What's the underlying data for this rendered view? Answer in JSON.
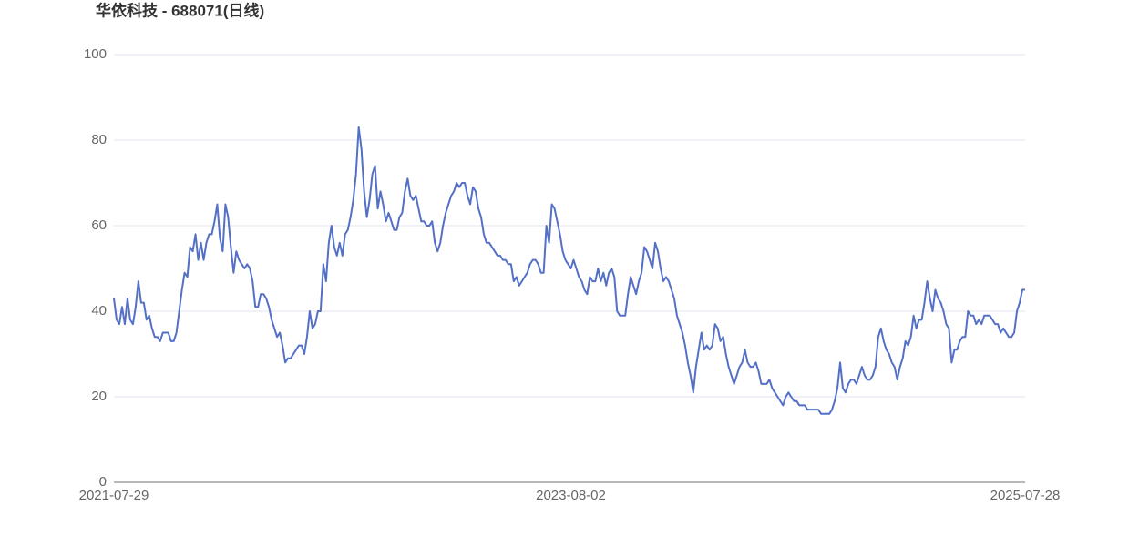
{
  "chart_data": {
    "type": "line",
    "title": "华依科技 - 688071(日线)",
    "categories": [
      "2021-07-29",
      null,
      null,
      null,
      null,
      null,
      null,
      null,
      null,
      null,
      null,
      null,
      null,
      null,
      null,
      null,
      null,
      null,
      null,
      null,
      null,
      null,
      null,
      null,
      null,
      null,
      null,
      null,
      null,
      null,
      null,
      null,
      null,
      null,
      null,
      null,
      null,
      null,
      null,
      null,
      null,
      null,
      null,
      null,
      null,
      null,
      null,
      null,
      null,
      null,
      null,
      null,
      null,
      null,
      null,
      null,
      null,
      null,
      null,
      null,
      null,
      null,
      null,
      null,
      null,
      null,
      null,
      null,
      null,
      null,
      null,
      null,
      null,
      null,
      null,
      null,
      null,
      null,
      null,
      null,
      null,
      null,
      null,
      null,
      null,
      null,
      null,
      null,
      null,
      null,
      null,
      null,
      null,
      null,
      null,
      null,
      null,
      null,
      null,
      null,
      null,
      null,
      null,
      null,
      null,
      null,
      null,
      null,
      null,
      null,
      null,
      null,
      null,
      null,
      null,
      null,
      null,
      null,
      null,
      null,
      null,
      null,
      null,
      null,
      null,
      null,
      null,
      null,
      null,
      null,
      null,
      null,
      null,
      null,
      null,
      null,
      null,
      null,
      null,
      null,
      null,
      null,
      null,
      null,
      null,
      null,
      null,
      null,
      null,
      null,
      null,
      null,
      null,
      null,
      null,
      null,
      null,
      null,
      null,
      null,
      null,
      null,
      null,
      null,
      null,
      null,
      null,
      null,
      "2023-08-02",
      null,
      null,
      null,
      null,
      null,
      null,
      null,
      null,
      null,
      null,
      null,
      null,
      null,
      null,
      null,
      null,
      null,
      null,
      null,
      null,
      null,
      null,
      null,
      null,
      null,
      null,
      null,
      null,
      null,
      null,
      null,
      null,
      null,
      null,
      null,
      null,
      null,
      null,
      null,
      null,
      null,
      null,
      null,
      null,
      null,
      null,
      null,
      null,
      null,
      null,
      null,
      null,
      null,
      null,
      null,
      null,
      null,
      null,
      null,
      null,
      null,
      null,
      null,
      null,
      null,
      null,
      null,
      null,
      null,
      null,
      null,
      null,
      null,
      null,
      null,
      null,
      null,
      null,
      null,
      null,
      null,
      null,
      null,
      null,
      null,
      null,
      null,
      null,
      null,
      null,
      null,
      null,
      null,
      null,
      null,
      null,
      null,
      null,
      null,
      null,
      null,
      null,
      null,
      null,
      null,
      null,
      null,
      null,
      null,
      null,
      null,
      null,
      null,
      null,
      null,
      null,
      null,
      null,
      null,
      null,
      null,
      null,
      null,
      null,
      null,
      null,
      null,
      null,
      null,
      null,
      null,
      null,
      null,
      null,
      null,
      null,
      null,
      null,
      null,
      null,
      null,
      null,
      null,
      null,
      null,
      null,
      null,
      null,
      null,
      null,
      null,
      null,
      null,
      null,
      null,
      null,
      null,
      null,
      null,
      null,
      null,
      null,
      null,
      null,
      null,
      null,
      "2025-07-28"
    ],
    "values": [
      43,
      38,
      37,
      41,
      37,
      43,
      38,
      37,
      41,
      47,
      42,
      42,
      38,
      39,
      36,
      34,
      34,
      33,
      35,
      35,
      35,
      33,
      33,
      35,
      40,
      45,
      49,
      48,
      55,
      54,
      58,
      52,
      56,
      52,
      56,
      58,
      58,
      61,
      65,
      57,
      54,
      65,
      62,
      55,
      49,
      54,
      52,
      51,
      50,
      51,
      50,
      47,
      41,
      41,
      44,
      44,
      43,
      41,
      38,
      36,
      34,
      35,
      32,
      28,
      29,
      29,
      30,
      31,
      32,
      32,
      30,
      34,
      40,
      36,
      37,
      40,
      40,
      51,
      47,
      56,
      60,
      55,
      53,
      56,
      53,
      58,
      59,
      62,
      66,
      72,
      83,
      78,
      68,
      62,
      66,
      72,
      74,
      64,
      68,
      65,
      61,
      63,
      61,
      59,
      59,
      62,
      63,
      68,
      71,
      67,
      66,
      67,
      64,
      61,
      61,
      60,
      60,
      61,
      56,
      54,
      56,
      60,
      63,
      65,
      67,
      68,
      70,
      69,
      70,
      70,
      67,
      65,
      69,
      68,
      64,
      62,
      58,
      56,
      56,
      55,
      54,
      53,
      53,
      52,
      52,
      51,
      51,
      47,
      48,
      46,
      47,
      48,
      49,
      51,
      52,
      52,
      51,
      49,
      49,
      60,
      56,
      65,
      64,
      61,
      58,
      54,
      52,
      51,
      50,
      52,
      50,
      48,
      47,
      45,
      44,
      48,
      47,
      47,
      50,
      47,
      49,
      46,
      49,
      50,
      48,
      40,
      39,
      39,
      39,
      44,
      48,
      46,
      44,
      47,
      49,
      55,
      54,
      52,
      50,
      56,
      54,
      50,
      47,
      48,
      47,
      45,
      43,
      39,
      37,
      35,
      32,
      28,
      25,
      21,
      27,
      31,
      35,
      31,
      32,
      31,
      32,
      37,
      36,
      33,
      34,
      30,
      27,
      25,
      23,
      25,
      27,
      28,
      31,
      28,
      27,
      27,
      28,
      26,
      23,
      23,
      23,
      24,
      22,
      21,
      20,
      19,
      18,
      20,
      21,
      20,
      19,
      19,
      18,
      18,
      18,
      17,
      17,
      17,
      17,
      17,
      16,
      16,
      16,
      16,
      17,
      19,
      22,
      28,
      22,
      21,
      23,
      24,
      24,
      23,
      25,
      27,
      25,
      24,
      24,
      25,
      27,
      34,
      36,
      33,
      31,
      30,
      28,
      27,
      24,
      27,
      29,
      33,
      32,
      34,
      39,
      36,
      38,
      38,
      42,
      47,
      43,
      40,
      45,
      43,
      42,
      40,
      37,
      36,
      28,
      31,
      31,
      33,
      34,
      34,
      40,
      39,
      39,
      37,
      38,
      37,
      39,
      39,
      39,
      38,
      37,
      37,
      35,
      36,
      35,
      34,
      34,
      35,
      40,
      42,
      45,
      45
    ],
    "color": "#5470c6",
    "ylim": [
      0,
      100
    ],
    "yticks": [
      0,
      20,
      40,
      60,
      80,
      100
    ],
    "grid": true
  }
}
